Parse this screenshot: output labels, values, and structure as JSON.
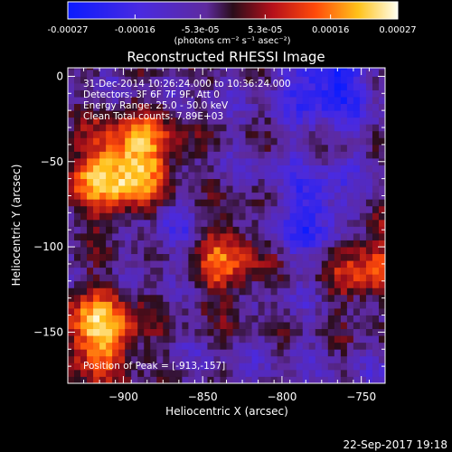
{
  "colorbar": {
    "tick_labels": [
      "-0.00027",
      "-0.00016",
      "-5.3e-05",
      "5.3e-05",
      "0.00016",
      "0.00027"
    ],
    "tick_values": [
      -0.00027,
      -0.00016,
      -5.3e-05,
      5.3e-05,
      0.00016,
      0.00027
    ],
    "units_label": "(photons cm⁻² s⁻¹ asec⁻²)",
    "range": [
      -0.00027,
      0.00027
    ]
  },
  "title": "Reconstructed RHESSI Image",
  "info": {
    "line1": "31-Dec-2014 10:26:24.000 to 10:36:24.000",
    "line2": "Detectors: 3F 6F 7F 9F, Att 0",
    "line3": "Energy Range: 25.0 - 50.0 keV",
    "line4": "Clean     Total counts: 7.89E+03",
    "peak": "Position of Peak = [-913,-157]"
  },
  "timestamp": "22-Sep-2017 19:18",
  "chart_data": {
    "type": "heatmap",
    "title": "Reconstructed RHESSI Image",
    "xlabel": "Heliocentric X (arcsec)",
    "ylabel": "Heliocentric Y (arcsec)",
    "xlim": [
      -935,
      -735
    ],
    "ylim": [
      -180,
      5
    ],
    "x_ticks": [
      -900,
      -850,
      -800,
      -750
    ],
    "x_tick_labels": [
      "−900",
      "−850",
      "−800",
      "−750"
    ],
    "y_ticks": [
      0,
      -50,
      -100,
      -150
    ],
    "y_tick_labels": [
      "0",
      "−50",
      "−100",
      "−150"
    ],
    "colormap": "blue-purple-red-yellow-white",
    "peak_position": [
      -913,
      -157
    ],
    "bright_regions": [
      {
        "x": -915,
        "y": -150,
        "level": 0.00027
      },
      {
        "x": -910,
        "y": -60,
        "level": 0.00022
      },
      {
        "x": -887,
        "y": -45,
        "level": 0.0002
      },
      {
        "x": -840,
        "y": -105,
        "level": 0.00022
      },
      {
        "x": -745,
        "y": -110,
        "level": 0.00018
      }
    ],
    "dark_regions": [
      {
        "x": -770,
        "y": 0,
        "level": -0.0002
      },
      {
        "x": -860,
        "y": -95,
        "level": -0.00012
      },
      {
        "x": -780,
        "y": -80,
        "level": -0.00015
      }
    ]
  }
}
